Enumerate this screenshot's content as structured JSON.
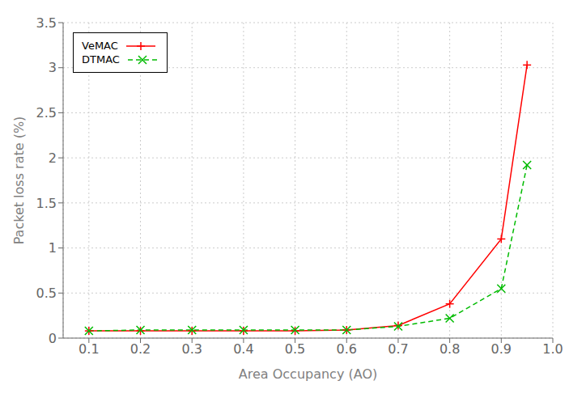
{
  "chart_data": {
    "type": "line",
    "xlabel": "Area Occupancy (AO)",
    "ylabel": "Packet loss rate (%)",
    "x": [
      0.1,
      0.2,
      0.3,
      0.4,
      0.5,
      0.6,
      0.7,
      0.8,
      0.9,
      0.95
    ],
    "series": [
      {
        "name": "VeMAC",
        "color": "#ff0000",
        "marker": "plus",
        "line_style": "solid",
        "values": [
          0.08,
          0.08,
          0.08,
          0.08,
          0.08,
          0.09,
          0.14,
          0.38,
          1.1,
          3.03
        ]
      },
      {
        "name": "DTMAC",
        "color": "#00bb00",
        "marker": "x",
        "line_style": "dashed",
        "values": [
          0.08,
          0.09,
          0.09,
          0.09,
          0.09,
          0.09,
          0.13,
          0.22,
          0.55,
          1.92
        ]
      }
    ],
    "xlim": [
      0.05,
      1.0
    ],
    "ylim": [
      0.0,
      3.5
    ],
    "xticks": [
      0.1,
      0.2,
      0.3,
      0.4,
      0.5,
      0.6,
      0.7,
      0.8,
      0.9,
      {
        "value": 1.0,
        "label": "1.0"
      }
    ],
    "yticks": [
      0.0,
      0.5,
      1.0,
      1.5,
      2.0,
      2.5,
      3.0,
      3.5
    ],
    "grid": true,
    "legend": "upper left"
  }
}
